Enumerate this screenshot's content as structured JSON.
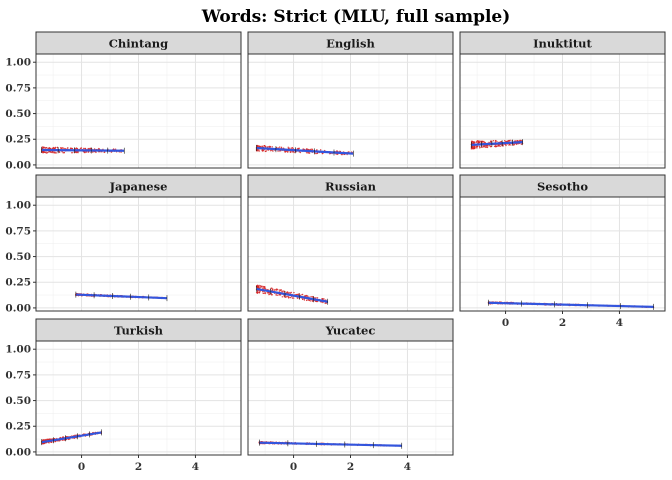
{
  "chart_data": {
    "type": "scatter",
    "title": "Words: Strict (MLU, full sample)",
    "xlabel": "",
    "ylabel": "",
    "xlim": [
      -1.6,
      5.6
    ],
    "ylim": [
      -0.03,
      1.08
    ],
    "x_ticks": [
      0,
      2,
      4
    ],
    "x_tick_labels": [
      "0",
      "2",
      "4"
    ],
    "y_ticks": [
      0.0,
      0.25,
      0.5,
      0.75,
      1.0
    ],
    "y_tick_labels": [
      "0.00",
      "0.25",
      "0.50",
      "0.75",
      "1.00"
    ],
    "grid": true,
    "point_color": "#d62728",
    "line_color": "#3355dd",
    "layout": "facet_wrap 3 columns; x axis labelled on bottom panel of each column",
    "panels": [
      {
        "name": "Chintang",
        "x_range": [
          -1.4,
          1.5
        ],
        "y_start": 0.145,
        "y_end": 0.138,
        "y_spread": 0.03
      },
      {
        "name": "English",
        "x_range": [
          -1.3,
          2.1
        ],
        "y_start": 0.165,
        "y_end": 0.11,
        "y_spread": 0.03
      },
      {
        "name": "Inuktitut",
        "x_range": [
          -1.2,
          0.6
        ],
        "y_start": 0.195,
        "y_end": 0.222,
        "y_spread": 0.04
      },
      {
        "name": "Japanese",
        "x_range": [
          -0.2,
          3.0
        ],
        "y_start": 0.13,
        "y_end": 0.095,
        "y_spread": 0.01
      },
      {
        "name": "Russian",
        "x_range": [
          -1.3,
          1.2
        ],
        "y_start": 0.185,
        "y_end": 0.06,
        "y_spread": 0.04
      },
      {
        "name": "Sesotho",
        "x_range": [
          -0.6,
          5.2
        ],
        "y_start": 0.05,
        "y_end": 0.01,
        "y_spread": 0.01
      },
      {
        "name": "Turkish",
        "x_range": [
          -1.4,
          0.7
        ],
        "y_start": 0.095,
        "y_end": 0.19,
        "y_spread": 0.02
      },
      {
        "name": "Yucatec",
        "x_range": [
          -1.2,
          3.8
        ],
        "y_start": 0.09,
        "y_end": 0.06,
        "y_spread": 0.01
      }
    ]
  }
}
